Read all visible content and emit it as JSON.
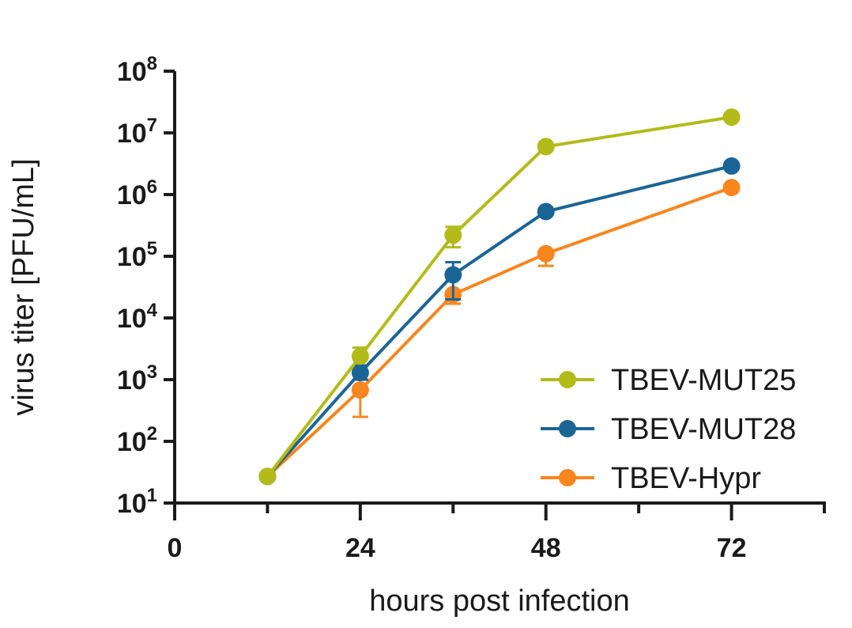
{
  "chart_data": {
    "type": "line",
    "xlabel": "hours post infection",
    "ylabel": "virus titer [PFU/mL]",
    "xlim": [
      0,
      84
    ],
    "ylim_log10": [
      1,
      8
    ],
    "y_scale": "log10",
    "x_ticks": [
      0,
      24,
      48,
      72
    ],
    "x_tick_labels": [
      "0",
      "24",
      "48",
      "72"
    ],
    "x_minor_ticks": [
      12,
      36,
      60,
      84
    ],
    "y_ticks": [
      {
        "base": "10",
        "exp": "8",
        "value": 8
      },
      {
        "base": "10",
        "exp": "7",
        "value": 7
      },
      {
        "base": "10",
        "exp": "6",
        "value": 6
      },
      {
        "base": "10",
        "exp": "5",
        "value": 5
      },
      {
        "base": "10",
        "exp": "4",
        "value": 4
      },
      {
        "base": "10",
        "exp": "3",
        "value": 3
      },
      {
        "base": "10",
        "exp": "2",
        "value": 2
      },
      {
        "base": "10",
        "exp": "1",
        "value": 1
      }
    ],
    "legend_position": "bottom-right",
    "grid": false,
    "series": [
      {
        "name": "TBEV-MUT25",
        "color": "#b3bb1a",
        "x": [
          12,
          24,
          36,
          48,
          72
        ],
        "y": [
          27,
          2400,
          220000,
          6000000,
          18000000
        ],
        "err_upper": [
          27,
          3300,
          300000,
          6000000,
          18000000
        ],
        "err_lower": [
          27,
          2400,
          140000,
          6000000,
          18000000
        ]
      },
      {
        "name": "TBEV-MUT28",
        "color": "#1b6596",
        "x": [
          12,
          24,
          36,
          48,
          72
        ],
        "y": [
          27,
          1300,
          50000,
          530000,
          2900000
        ],
        "err_upper": [
          27,
          1700,
          80000,
          530000,
          2900000
        ],
        "err_lower": [
          27,
          1000,
          20000,
          530000,
          2900000
        ]
      },
      {
        "name": "TBEV-Hypr",
        "color": "#f7861f",
        "x": [
          12,
          24,
          36,
          48,
          72
        ],
        "y": [
          27,
          680,
          24000,
          110000,
          1300000
        ],
        "err_upper": [
          27,
          680,
          24000,
          110000,
          1300000
        ],
        "err_lower": [
          27,
          250,
          17000,
          70000,
          1300000
        ]
      }
    ]
  }
}
